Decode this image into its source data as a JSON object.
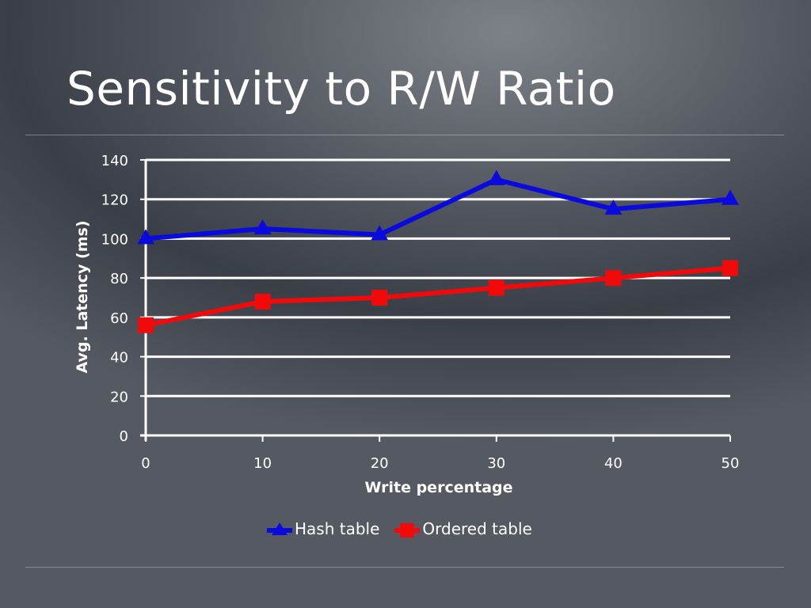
{
  "slide": {
    "title": "Sensitivity to R/W Ratio"
  },
  "colors": {
    "hash": "#0a0adf",
    "ordered": "#f20a0a",
    "grid": "#ffffff",
    "text": "#ffffff"
  },
  "chart_data": {
    "type": "line",
    "xlabel": "Write percentage",
    "ylabel": "Avg. Latency (ms)",
    "x": [
      0,
      10,
      20,
      30,
      40,
      50
    ],
    "ylim": [
      0,
      140
    ],
    "yticks": [
      0,
      20,
      40,
      60,
      80,
      100,
      120,
      140
    ],
    "grid": true,
    "legend_position": "bottom",
    "series": [
      {
        "name": "Hash table",
        "marker": "triangle",
        "color": "#0a0adf",
        "values": [
          100,
          105,
          102,
          130,
          115,
          120
        ]
      },
      {
        "name": "Ordered table",
        "marker": "square",
        "color": "#f20a0a",
        "values": [
          56,
          68,
          70,
          75,
          80,
          85
        ]
      }
    ]
  }
}
